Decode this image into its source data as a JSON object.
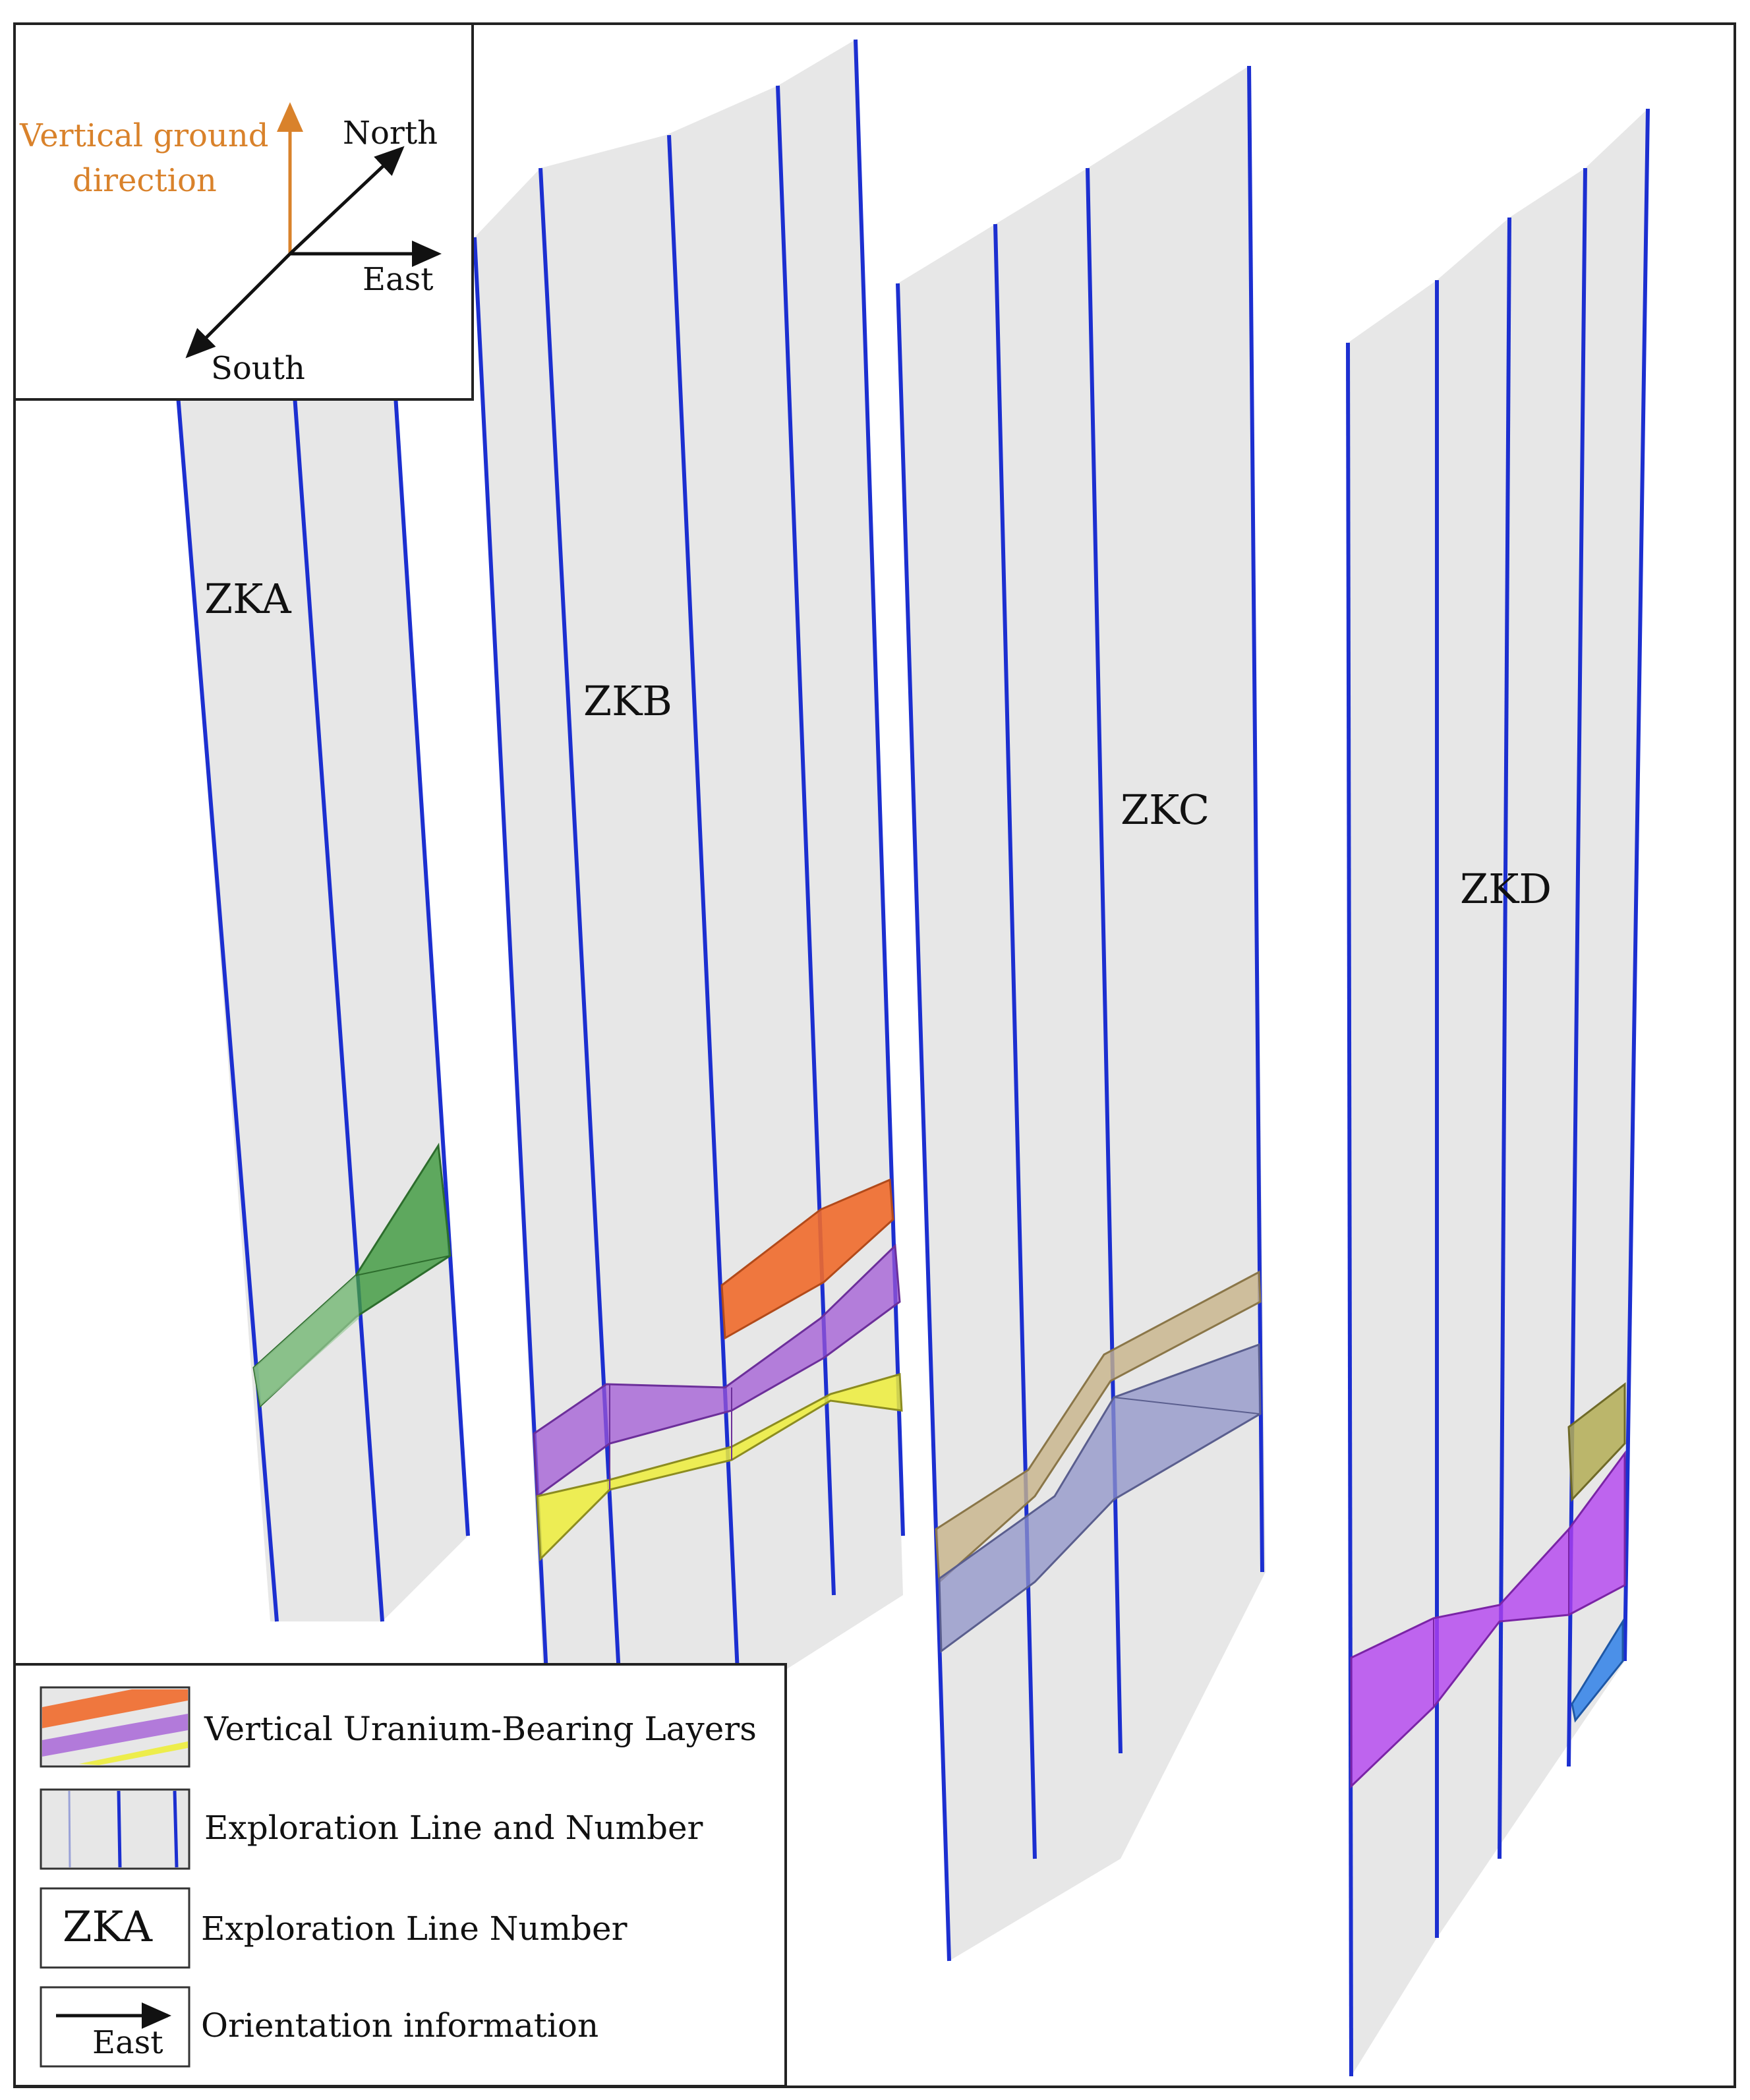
{
  "compass": {
    "vertical_label_line1": "Vertical ground",
    "vertical_label_line2": "direction",
    "north": "North",
    "east": "East",
    "south": "South",
    "vertical_color": "#d9822b"
  },
  "sections": [
    {
      "id": "zka",
      "label": "ZKA"
    },
    {
      "id": "zkb",
      "label": "ZKB"
    },
    {
      "id": "zkc",
      "label": "ZKC"
    },
    {
      "id": "zkd",
      "label": "ZKD"
    }
  ],
  "legend": {
    "layers_label": "Vertical Uranium-Bearing Layers",
    "line_and_number_label": "Exploration  Line  and Number",
    "number_box_text": "ZKA",
    "number_label": "Exploration  Line  Number",
    "orientation_arrow_text": "East",
    "orientation_label": "Orientation information"
  },
  "colors": {
    "panel": "#e7e7e7",
    "drill_line": "#1c2fd0",
    "green": "#3f9a3f",
    "orange": "#f06a2b",
    "purple": "#a055d6",
    "yellow": "#eded3a",
    "tan": "#c8b48a",
    "slate": "#8f93c8",
    "olive": "#b3ad55",
    "magenta": "#b23fef",
    "blue": "#3a86e8"
  }
}
